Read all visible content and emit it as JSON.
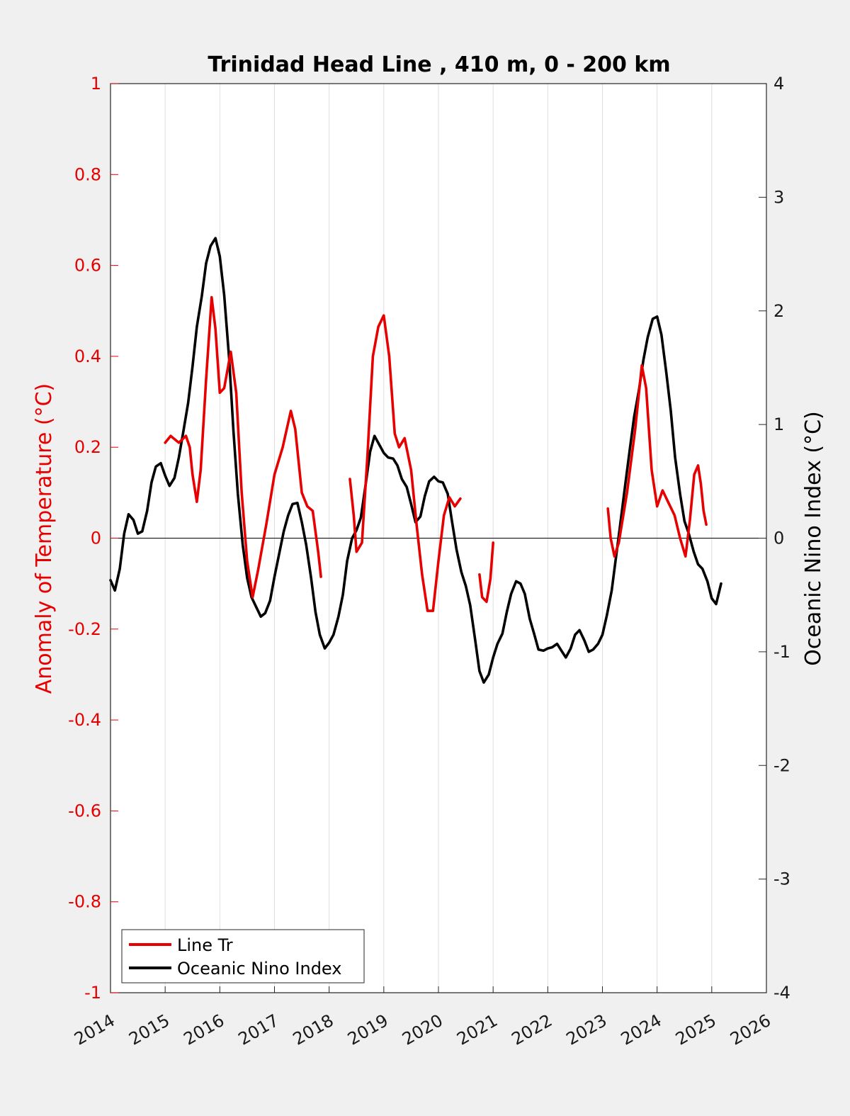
{
  "chart_data": {
    "type": "line",
    "title": "Trinidad Head Line , 410 m, 0 - 200 km",
    "ylabel_left": "Anomaly of Temperature (°C)",
    "ylabel_right": "Oceanic Nino Index (°C)",
    "xlabel": "",
    "xlim": [
      2014,
      2026
    ],
    "ylim_left": [
      -1,
      1
    ],
    "ylim_right": [
      -4,
      4
    ],
    "x_ticks": [
      "2014",
      "2015",
      "2016",
      "2017",
      "2018",
      "2019",
      "2020",
      "2021",
      "2022",
      "2023",
      "2024",
      "2025",
      "2026"
    ],
    "y_left_ticks": [
      "1",
      "0.8",
      "0.6",
      "0.4",
      "0.2",
      "0",
      "-0.2",
      "-0.4",
      "-0.6",
      "-0.8",
      "-1"
    ],
    "y_right_ticks": [
      "4",
      "3",
      "2",
      "1",
      "0",
      "-1",
      "-2",
      "-3",
      "-4"
    ],
    "grid": "vertical",
    "legend_position": "bottom-left",
    "series": [
      {
        "name": "Line Tr",
        "axis": "left",
        "color": "#e60000",
        "segments": [
          [
            [
              2015.0,
              0.21
            ],
            [
              2015.1,
              0.225
            ],
            [
              2015.25,
              0.21
            ],
            [
              2015.38,
              0.225
            ],
            [
              2015.45,
              0.2
            ],
            [
              2015.5,
              0.14
            ],
            [
              2015.58,
              0.08
            ],
            [
              2015.65,
              0.15
            ],
            [
              2015.75,
              0.35
            ],
            [
              2015.85,
              0.53
            ],
            [
              2015.92,
              0.46
            ],
            [
              2016.0,
              0.32
            ],
            [
              2016.08,
              0.33
            ],
            [
              2016.2,
              0.41
            ],
            [
              2016.3,
              0.32
            ],
            [
              2016.4,
              0.1
            ],
            [
              2016.5,
              -0.05
            ],
            [
              2016.6,
              -0.13
            ],
            [
              2016.7,
              -0.07
            ],
            [
              2016.85,
              0.03
            ],
            [
              2017.0,
              0.14
            ],
            [
              2017.15,
              0.2
            ],
            [
              2017.3,
              0.28
            ],
            [
              2017.38,
              0.24
            ],
            [
              2017.5,
              0.1
            ],
            [
              2017.6,
              0.07
            ],
            [
              2017.7,
              0.06
            ],
            [
              2017.8,
              -0.03
            ],
            [
              2017.85,
              -0.085
            ]
          ],
          [
            [
              2018.38,
              0.13
            ],
            [
              2018.45,
              0.05
            ],
            [
              2018.5,
              -0.03
            ],
            [
              2018.6,
              -0.01
            ],
            [
              2018.7,
              0.18
            ],
            [
              2018.8,
              0.4
            ],
            [
              2018.9,
              0.465
            ],
            [
              2019.0,
              0.49
            ],
            [
              2019.1,
              0.4
            ],
            [
              2019.2,
              0.23
            ],
            [
              2019.28,
              0.2
            ],
            [
              2019.38,
              0.22
            ],
            [
              2019.5,
              0.15
            ],
            [
              2019.6,
              0.03
            ],
            [
              2019.7,
              -0.08
            ],
            [
              2019.8,
              -0.16
            ],
            [
              2019.9,
              -0.16
            ],
            [
              2020.0,
              -0.05
            ],
            [
              2020.1,
              0.05
            ],
            [
              2020.2,
              0.09
            ],
            [
              2020.3,
              0.07
            ],
            [
              2020.4,
              0.087
            ]
          ],
          [
            [
              2020.75,
              -0.08
            ],
            [
              2020.8,
              -0.13
            ],
            [
              2020.88,
              -0.14
            ],
            [
              2020.95,
              -0.09
            ],
            [
              2021.0,
              -0.01
            ]
          ],
          [
            [
              2023.1,
              0.065
            ],
            [
              2023.15,
              0.0
            ],
            [
              2023.22,
              -0.04
            ],
            [
              2023.3,
              -0.01
            ],
            [
              2023.45,
              0.1
            ],
            [
              2023.6,
              0.24
            ],
            [
              2023.72,
              0.38
            ],
            [
              2023.8,
              0.33
            ],
            [
              2023.9,
              0.15
            ],
            [
              2024.0,
              0.07
            ],
            [
              2024.1,
              0.105
            ],
            [
              2024.2,
              0.08
            ],
            [
              2024.32,
              0.05
            ],
            [
              2024.42,
              0.0
            ],
            [
              2024.52,
              -0.04
            ],
            [
              2024.6,
              0.04
            ],
            [
              2024.68,
              0.14
            ],
            [
              2024.75,
              0.16
            ],
            [
              2024.8,
              0.12
            ],
            [
              2024.85,
              0.06
            ],
            [
              2024.9,
              0.03
            ]
          ]
        ]
      },
      {
        "name": "Oceanic Nino Index",
        "axis": "right",
        "color": "#000000",
        "segments": [
          [
            [
              2014.0,
              -0.37
            ],
            [
              2014.08,
              -0.46
            ],
            [
              2014.17,
              -0.27
            ],
            [
              2014.25,
              0.04
            ],
            [
              2014.33,
              0.21
            ],
            [
              2014.42,
              0.16
            ],
            [
              2014.5,
              0.04
            ],
            [
              2014.58,
              0.06
            ],
            [
              2014.67,
              0.24
            ],
            [
              2014.75,
              0.49
            ],
            [
              2014.83,
              0.63
            ],
            [
              2014.92,
              0.66
            ],
            [
              2015.0,
              0.55
            ],
            [
              2015.08,
              0.46
            ],
            [
              2015.17,
              0.53
            ],
            [
              2015.25,
              0.71
            ],
            [
              2015.33,
              0.93
            ],
            [
              2015.42,
              1.19
            ],
            [
              2015.5,
              1.51
            ],
            [
              2015.58,
              1.86
            ],
            [
              2015.67,
              2.13
            ],
            [
              2015.75,
              2.42
            ],
            [
              2015.83,
              2.57
            ],
            [
              2015.92,
              2.64
            ],
            [
              2016.0,
              2.48
            ],
            [
              2016.08,
              2.14
            ],
            [
              2016.17,
              1.58
            ],
            [
              2016.25,
              0.94
            ],
            [
              2016.33,
              0.39
            ],
            [
              2016.42,
              -0.06
            ],
            [
              2016.5,
              -0.35
            ],
            [
              2016.58,
              -0.52
            ],
            [
              2016.67,
              -0.61
            ],
            [
              2016.75,
              -0.69
            ],
            [
              2016.83,
              -0.66
            ],
            [
              2016.92,
              -0.55
            ],
            [
              2017.0,
              -0.34
            ],
            [
              2017.08,
              -0.15
            ],
            [
              2017.17,
              0.06
            ],
            [
              2017.25,
              0.2
            ],
            [
              2017.33,
              0.3
            ],
            [
              2017.42,
              0.31
            ],
            [
              2017.5,
              0.14
            ],
            [
              2017.58,
              -0.06
            ],
            [
              2017.67,
              -0.35
            ],
            [
              2017.75,
              -0.65
            ],
            [
              2017.83,
              -0.85
            ],
            [
              2017.92,
              -0.97
            ],
            [
              2018.0,
              -0.92
            ],
            [
              2018.08,
              -0.85
            ],
            [
              2018.17,
              -0.69
            ],
            [
              2018.25,
              -0.5
            ],
            [
              2018.33,
              -0.2
            ],
            [
              2018.42,
              0.0
            ],
            [
              2018.5,
              0.07
            ],
            [
              2018.58,
              0.18
            ],
            [
              2018.67,
              0.48
            ],
            [
              2018.75,
              0.76
            ],
            [
              2018.83,
              0.9
            ],
            [
              2018.92,
              0.82
            ],
            [
              2019.0,
              0.75
            ],
            [
              2019.08,
              0.71
            ],
            [
              2019.17,
              0.7
            ],
            [
              2019.25,
              0.64
            ],
            [
              2019.33,
              0.52
            ],
            [
              2019.42,
              0.45
            ],
            [
              2019.5,
              0.3
            ],
            [
              2019.58,
              0.14
            ],
            [
              2019.67,
              0.19
            ],
            [
              2019.75,
              0.37
            ],
            [
              2019.83,
              0.5
            ],
            [
              2019.92,
              0.54
            ],
            [
              2020.0,
              0.5
            ],
            [
              2020.08,
              0.49
            ],
            [
              2020.17,
              0.39
            ],
            [
              2020.25,
              0.14
            ],
            [
              2020.33,
              -0.1
            ],
            [
              2020.42,
              -0.3
            ],
            [
              2020.5,
              -0.42
            ],
            [
              2020.58,
              -0.59
            ],
            [
              2020.67,
              -0.89
            ],
            [
              2020.75,
              -1.17
            ],
            [
              2020.83,
              -1.27
            ],
            [
              2020.92,
              -1.2
            ],
            [
              2021.0,
              -1.05
            ],
            [
              2021.08,
              -0.93
            ],
            [
              2021.17,
              -0.84
            ],
            [
              2021.25,
              -0.65
            ],
            [
              2021.33,
              -0.49
            ],
            [
              2021.42,
              -0.38
            ],
            [
              2021.5,
              -0.4
            ],
            [
              2021.58,
              -0.49
            ],
            [
              2021.67,
              -0.71
            ],
            [
              2021.75,
              -0.84
            ],
            [
              2021.83,
              -0.98
            ],
            [
              2021.92,
              -0.99
            ],
            [
              2022.0,
              -0.97
            ],
            [
              2022.08,
              -0.96
            ],
            [
              2022.17,
              -0.93
            ],
            [
              2022.25,
              -0.99
            ],
            [
              2022.33,
              -1.05
            ],
            [
              2022.42,
              -0.97
            ],
            [
              2022.5,
              -0.85
            ],
            [
              2022.58,
              -0.81
            ],
            [
              2022.67,
              -0.9
            ],
            [
              2022.75,
              -1.0
            ],
            [
              2022.83,
              -0.98
            ],
            [
              2022.92,
              -0.93
            ],
            [
              2023.0,
              -0.85
            ],
            [
              2023.08,
              -0.68
            ],
            [
              2023.17,
              -0.46
            ],
            [
              2023.25,
              -0.16
            ],
            [
              2023.33,
              0.14
            ],
            [
              2023.42,
              0.48
            ],
            [
              2023.5,
              0.78
            ],
            [
              2023.58,
              1.07
            ],
            [
              2023.67,
              1.31
            ],
            [
              2023.75,
              1.57
            ],
            [
              2023.83,
              1.77
            ],
            [
              2023.92,
              1.93
            ],
            [
              2024.0,
              1.95
            ],
            [
              2024.08,
              1.79
            ],
            [
              2024.17,
              1.45
            ],
            [
              2024.25,
              1.12
            ],
            [
              2024.33,
              0.71
            ],
            [
              2024.42,
              0.39
            ],
            [
              2024.5,
              0.15
            ],
            [
              2024.58,
              0.04
            ],
            [
              2024.67,
              -0.12
            ],
            [
              2024.75,
              -0.23
            ],
            [
              2024.83,
              -0.27
            ],
            [
              2024.92,
              -0.38
            ],
            [
              2025.0,
              -0.53
            ],
            [
              2025.08,
              -0.58
            ],
            [
              2025.17,
              -0.4
            ]
          ]
        ]
      }
    ]
  }
}
